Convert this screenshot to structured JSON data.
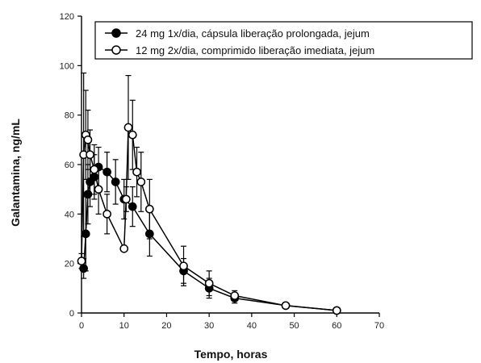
{
  "chart_data": {
    "type": "line",
    "xlabel": "Tempo, horas",
    "ylabel": "Galantamina, ng/mL",
    "xlim": [
      0,
      70
    ],
    "ylim": [
      0,
      120
    ],
    "xticks": [
      0,
      10,
      20,
      30,
      40,
      50,
      60,
      70
    ],
    "yticks": [
      0,
      20,
      40,
      60,
      80,
      100,
      120
    ],
    "grid": false,
    "legend_position": "top-right",
    "series": [
      {
        "name": "24 mg 1x/dia, cápsula liberação prolongada, jejum",
        "marker": "filled-circle",
        "color": "#000000",
        "points": [
          {
            "x": 0,
            "y": 0,
            "err": 0
          },
          {
            "x": 0.5,
            "y": 18,
            "err": 4
          },
          {
            "x": 1,
            "y": 32,
            "err": 15
          },
          {
            "x": 1.5,
            "y": 48,
            "err": 12
          },
          {
            "x": 2,
            "y": 53,
            "err": 10
          },
          {
            "x": 3,
            "y": 55,
            "err": 9
          },
          {
            "x": 4,
            "y": 59,
            "err": 8
          },
          {
            "x": 6,
            "y": 57,
            "err": 8
          },
          {
            "x": 8,
            "y": 53,
            "err": 9
          },
          {
            "x": 10,
            "y": 46,
            "err": 8
          },
          {
            "x": 12,
            "y": 43,
            "err": 8
          },
          {
            "x": 16,
            "y": 32,
            "err": 9
          },
          {
            "x": 24,
            "y": 17,
            "err": 5
          },
          {
            "x": 30,
            "y": 10,
            "err": 4
          },
          {
            "x": 36,
            "y": 6,
            "err": 2
          },
          {
            "x": 48,
            "y": 3,
            "err": 1
          },
          {
            "x": 60,
            "y": 1,
            "err": 0.5
          }
        ]
      },
      {
        "name": "12 mg 2x/dia, comprimido liberação imediata, jejum",
        "marker": "open-circle",
        "color": "#000000",
        "points": [
          {
            "x": 0,
            "y": 21,
            "err": 3
          },
          {
            "x": 0.5,
            "y": 64,
            "err": 33
          },
          {
            "x": 1,
            "y": 72,
            "err": 18
          },
          {
            "x": 1.5,
            "y": 70,
            "err": 12
          },
          {
            "x": 2,
            "y": 64,
            "err": 10
          },
          {
            "x": 3,
            "y": 58,
            "err": 10
          },
          {
            "x": 4,
            "y": 50,
            "err": 10
          },
          {
            "x": 6,
            "y": 40,
            "err": 8
          },
          {
            "x": 10,
            "y": 26,
            "err": 0
          },
          {
            "x": 10.5,
            "y": 46,
            "err": 5
          },
          {
            "x": 11,
            "y": 75,
            "err": 21
          },
          {
            "x": 12,
            "y": 72,
            "err": 14
          },
          {
            "x": 13,
            "y": 57,
            "err": 10
          },
          {
            "x": 14,
            "y": 53,
            "err": 12
          },
          {
            "x": 16,
            "y": 42,
            "err": 12
          },
          {
            "x": 24,
            "y": 19,
            "err": 8
          },
          {
            "x": 30,
            "y": 12,
            "err": 5
          },
          {
            "x": 36,
            "y": 7,
            "err": 2
          },
          {
            "x": 48,
            "y": 3,
            "err": 1
          },
          {
            "x": 60,
            "y": 1,
            "err": 0.5
          }
        ]
      }
    ]
  }
}
